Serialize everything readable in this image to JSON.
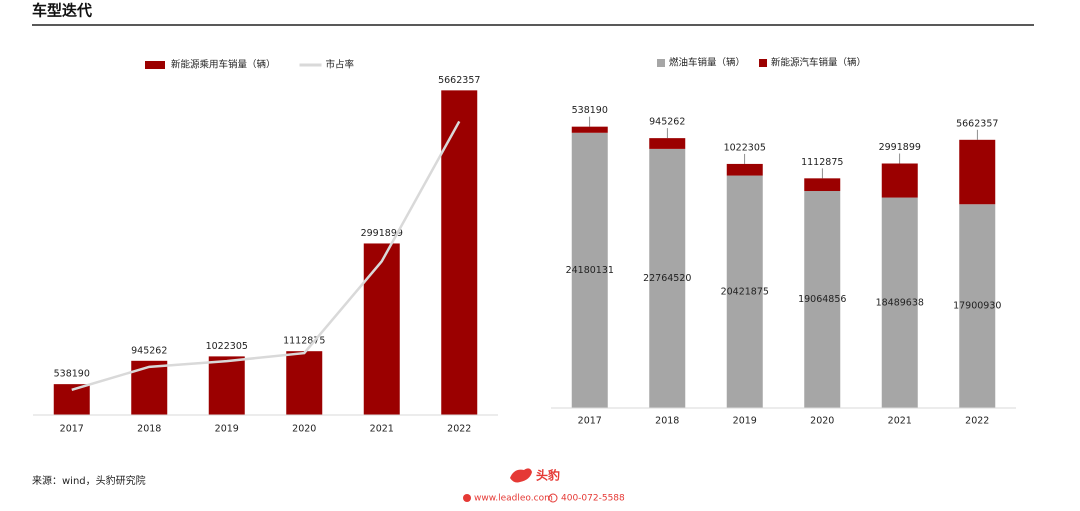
{
  "header": {
    "title": "车型迭代"
  },
  "chart_data": [
    {
      "type": "bar",
      "categories": [
        "2017",
        "2018",
        "2019",
        "2020",
        "2021",
        "2022"
      ],
      "series": [
        {
          "name": "新能源乘用车销量（辆）",
          "color": "#9b0000",
          "values": [
            538190,
            945262,
            1022305,
            1112875,
            2991899,
            5662357
          ]
        },
        {
          "name": "市占率",
          "type": "line",
          "axis": "y2",
          "color": "#d9d9d9",
          "values": [
            2.2,
            4.2,
            4.7,
            5.4,
            13.4,
            25.6
          ]
        }
      ],
      "ylim": [
        0,
        6000000
      ],
      "y2lim": [
        0,
        30
      ]
    },
    {
      "type": "stacked_bar",
      "categories": [
        "2017",
        "2018",
        "2019",
        "2020",
        "2021",
        "2022"
      ],
      "series": [
        {
          "name": "燃油车销量（辆）",
          "color": "#a6a6a6",
          "values": [
            24180131,
            22764520,
            20421875,
            19064856,
            18489638,
            17900930
          ]
        },
        {
          "name": "新能源汽车销量（辆）",
          "color": "#9b0000",
          "values": [
            538190,
            945262,
            1022305,
            1112875,
            2991899,
            5662357
          ]
        }
      ],
      "ylim": [
        0,
        27500000
      ]
    }
  ],
  "footer": {
    "source": "来源：wind，头豹研究院",
    "brand": "头豹",
    "website": "www.leadleo.com",
    "phone": "400-072-5588"
  }
}
